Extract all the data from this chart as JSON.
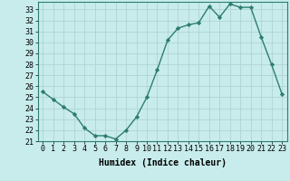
{
  "x": [
    0,
    1,
    2,
    3,
    4,
    5,
    6,
    7,
    8,
    9,
    10,
    11,
    12,
    13,
    14,
    15,
    16,
    17,
    18,
    19,
    20,
    21,
    22,
    23
  ],
  "y": [
    25.5,
    24.8,
    24.1,
    23.5,
    22.2,
    21.5,
    21.5,
    21.2,
    22.0,
    23.2,
    25.0,
    27.5,
    30.2,
    31.3,
    31.6,
    31.8,
    33.3,
    32.3,
    33.5,
    33.2,
    33.2,
    30.5,
    28.0,
    25.3
  ],
  "line_color": "#2e7d6e",
  "marker": "D",
  "marker_size": 2.2,
  "linewidth": 1.0,
  "bg_color": "#c8ecec",
  "grid_color": "#b0d4d4",
  "xlabel": "Humidex (Indice chaleur)",
  "xlabel_fontsize": 7,
  "tick_fontsize": 6,
  "xlim": [
    -0.5,
    23.5
  ],
  "ylim": [
    21,
    33.7
  ],
  "yticks": [
    21,
    22,
    23,
    24,
    25,
    26,
    27,
    28,
    29,
    30,
    31,
    32,
    33
  ],
  "xticks": [
    0,
    1,
    2,
    3,
    4,
    5,
    6,
    7,
    8,
    9,
    10,
    11,
    12,
    13,
    14,
    15,
    16,
    17,
    18,
    19,
    20,
    21,
    22,
    23
  ]
}
